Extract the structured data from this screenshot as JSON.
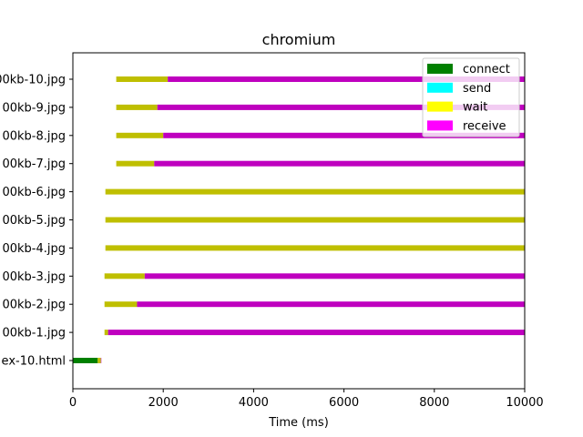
{
  "chart_data": {
    "type": "bar",
    "orientation": "horizontal-timeline",
    "title": "chromium",
    "xlabel": "Time (ms)",
    "ylabel": "",
    "xlim": [
      0,
      10000
    ],
    "xticks": [
      0,
      2000,
      4000,
      6000,
      8000,
      10000
    ],
    "grid": false,
    "legend_position": "top-right",
    "legend": [
      {
        "name": "connect",
        "color": "#008000"
      },
      {
        "name": "send",
        "color": "#00ffff"
      },
      {
        "name": "wait",
        "color": "#ffff00"
      },
      {
        "name": "receive",
        "color": "#ff00ff"
      }
    ],
    "segment_colors": {
      "connect": "#008000",
      "send": "#00bfbf",
      "wait": "#bfbf00",
      "receive": "#bf00bf"
    },
    "rows": [
      {
        "label": "ex-10.html",
        "segments": {
          "connect": [
            0,
            550
          ],
          "wait": [
            550,
            620
          ],
          "receive": [
            620,
            630
          ]
        }
      },
      {
        "label": "00kb-1.jpg",
        "segments": {
          "wait": [
            700,
            780
          ],
          "receive": [
            780,
            10000
          ]
        }
      },
      {
        "label": "00kb-2.jpg",
        "segments": {
          "wait": [
            700,
            1420
          ],
          "receive": [
            1420,
            10000
          ]
        }
      },
      {
        "label": "00kb-3.jpg",
        "segments": {
          "wait": [
            700,
            1590
          ],
          "receive": [
            1590,
            10000
          ]
        }
      },
      {
        "label": "00kb-4.jpg",
        "segments": {
          "wait": [
            720,
            10000
          ]
        }
      },
      {
        "label": "00kb-5.jpg",
        "segments": {
          "wait": [
            720,
            10000
          ]
        }
      },
      {
        "label": "00kb-6.jpg",
        "segments": {
          "wait": [
            720,
            10000
          ]
        }
      },
      {
        "label": "00kb-7.jpg",
        "segments": {
          "wait": [
            960,
            1800
          ],
          "receive": [
            1800,
            10000
          ]
        }
      },
      {
        "label": "00kb-8.jpg",
        "segments": {
          "wait": [
            960,
            2000
          ],
          "receive": [
            2000,
            10000
          ]
        }
      },
      {
        "label": "00kb-9.jpg",
        "segments": {
          "wait": [
            960,
            1870
          ],
          "receive": [
            1870,
            10000
          ]
        }
      },
      {
        "label": "00kb-10.jpg",
        "segments": {
          "wait": [
            960,
            2100
          ],
          "receive": [
            2100,
            10000
          ]
        }
      }
    ]
  }
}
